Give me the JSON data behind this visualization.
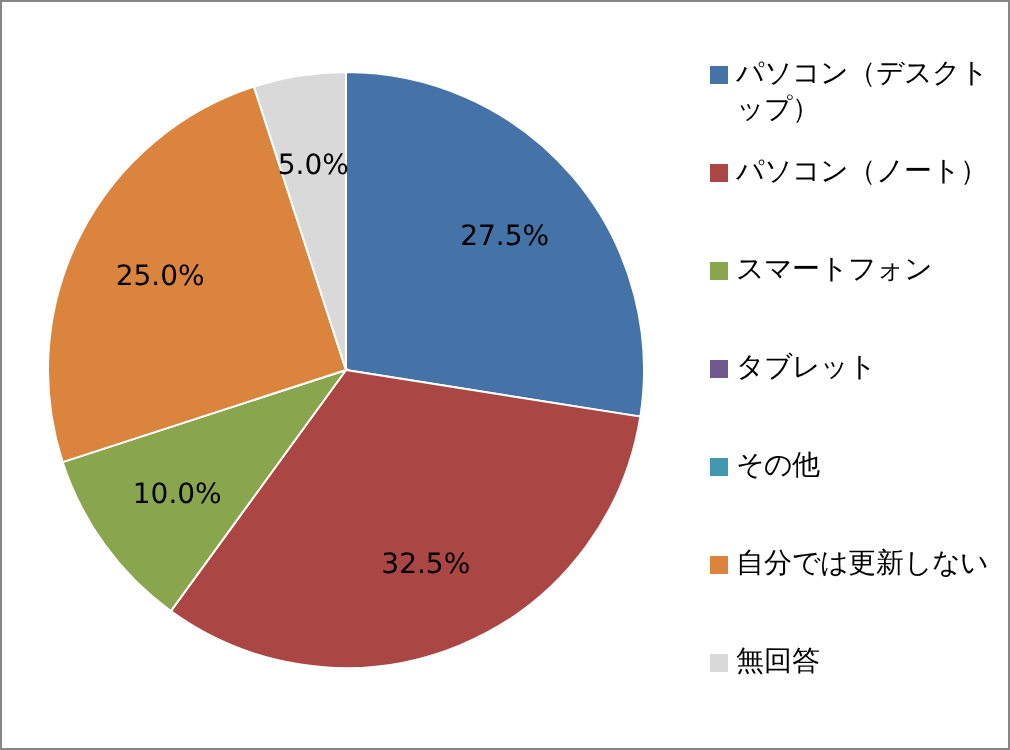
{
  "chart_data": {
    "type": "pie",
    "categories": [
      "パソコン（デスクトップ）",
      "パソコン（ノート）",
      "スマートフォン",
      "タブレット",
      "その他",
      "自分では更新しない",
      "無回答"
    ],
    "values": [
      27.5,
      32.5,
      10.0,
      0,
      0,
      25.0,
      5.0
    ],
    "colors": [
      "#4572a7",
      "#aa4643",
      "#89a54e",
      "#71588f",
      "#4198af",
      "#db843d",
      "#d9d9d9"
    ],
    "value_labels": [
      "27.5%",
      "32.5%",
      "10.0%",
      null,
      null,
      "25.0%",
      "5.0%"
    ],
    "legend": "right"
  }
}
